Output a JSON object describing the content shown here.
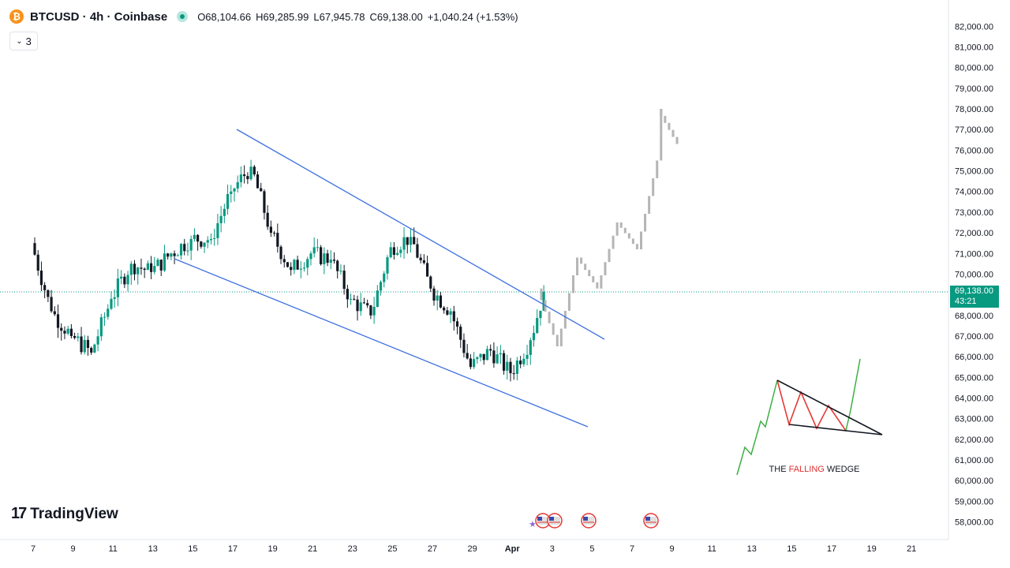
{
  "header": {
    "coin_glyph": "₿",
    "symbol_line": "BTCUSD · 4h · Coinbase",
    "open": "O68,104.66",
    "high": "H69,285.99",
    "low": "L67,945.78",
    "close": "C69,138.00",
    "change": "+1,040.24 (+1.53%)",
    "indicators_count": "3",
    "up_color": "#089981"
  },
  "price_tag": {
    "price": "69,138.00",
    "countdown": "43:21",
    "color": "#089981"
  },
  "watermark": {
    "logo": "17",
    "text": "TradingView"
  },
  "annotation": {
    "prefix": "THE ",
    "highlight": "FALLING",
    "suffix": " WEDGE",
    "highlight_color": "#e03030"
  },
  "chart_data": {
    "type": "candlestick",
    "price_axis_ticks": [
      "82,000.00",
      "81,000.00",
      "80,000.00",
      "79,000.00",
      "78,000.00",
      "77,000.00",
      "76,000.00",
      "75,000.00",
      "74,000.00",
      "73,000.00",
      "72,000.00",
      "71,000.00",
      "70,000.00",
      "68,000.00",
      "67,000.00",
      "66,000.00",
      "65,000.00",
      "64,000.00",
      "63,000.00",
      "62,000.00",
      "61,000.00",
      "60,000.00",
      "59,000.00",
      "58,000.00"
    ],
    "time_axis_ticks": [
      "7",
      "9",
      "11",
      "13",
      "15",
      "17",
      "19",
      "21",
      "23",
      "25",
      "27",
      "29",
      "Apr",
      "3",
      "5",
      "7",
      "9",
      "11",
      "13",
      "15",
      "17",
      "19",
      "21"
    ],
    "y_range": [
      57600,
      82300
    ],
    "x_range_days": [
      "Mar 6",
      "Apr 22"
    ],
    "current_price": 69138,
    "ohlc_daily": [
      {
        "day": "Mar 7",
        "open": 71500,
        "close": 68200
      },
      {
        "day": "Mar 8",
        "open": 68200,
        "close": 67000
      },
      {
        "day": "Mar 9",
        "open": 67000,
        "close": 66200
      },
      {
        "day": "Mar 10",
        "open": 66200,
        "close": 68800
      },
      {
        "day": "Mar 11",
        "open": 68800,
        "close": 70500
      },
      {
        "day": "Mar 12",
        "open": 70500,
        "close": 70100
      },
      {
        "day": "Mar 13",
        "open": 70100,
        "close": 71000
      },
      {
        "day": "Mar 14",
        "open": 71000,
        "close": 71700
      },
      {
        "day": "Mar 15",
        "open": 71700,
        "close": 71700
      },
      {
        "day": "Mar 16",
        "open": 71700,
        "close": 74000
      },
      {
        "day": "Mar 17",
        "open": 74000,
        "close": 75200
      },
      {
        "day": "Mar 18",
        "open": 75200,
        "close": 72000
      },
      {
        "day": "Mar 19",
        "open": 72000,
        "close": 70200
      },
      {
        "day": "Mar 20",
        "open": 70200,
        "close": 71000
      },
      {
        "day": "Mar 21",
        "open": 71000,
        "close": 70700
      },
      {
        "day": "Mar 22",
        "open": 70700,
        "close": 68800
      },
      {
        "day": "Mar 23",
        "open": 68800,
        "close": 68000
      },
      {
        "day": "Mar 24",
        "open": 68000,
        "close": 71300
      },
      {
        "day": "Mar 25",
        "open": 71300,
        "close": 71800
      },
      {
        "day": "Mar 26",
        "open": 71800,
        "close": 69300
      },
      {
        "day": "Mar 27",
        "open": 69300,
        "close": 68200
      },
      {
        "day": "Mar 28",
        "open": 68200,
        "close": 65500
      },
      {
        "day": "Mar 29",
        "open": 65500,
        "close": 66300
      },
      {
        "day": "Mar 30",
        "open": 66300,
        "close": 65200
      },
      {
        "day": "Mar 31",
        "open": 65200,
        "close": 66800
      },
      {
        "day": "Apr 1",
        "open": 66800,
        "close": 69138
      }
    ],
    "projection_path": [
      {
        "day": "Apr 1",
        "price": 69300
      },
      {
        "day": "Apr 2",
        "price": 66500
      },
      {
        "day": "Apr 3",
        "price": 70800
      },
      {
        "day": "Apr 4",
        "price": 69300
      },
      {
        "day": "Apr 5",
        "price": 72500
      },
      {
        "day": "Apr 6",
        "price": 71200
      },
      {
        "day": "Apr 7",
        "price": 75500
      },
      {
        "day": "Apr 7",
        "price": 78000
      },
      {
        "day": "Apr 8",
        "price": 76300
      }
    ],
    "annotations": [
      {
        "kind": "line",
        "label": "wedge-upper",
        "from": {
          "day": "Mar 17",
          "price": 77000
        },
        "to": {
          "day": "Apr 4",
          "price": 67200
        }
      },
      {
        "kind": "line",
        "label": "wedge-lower",
        "from": {
          "day": "Mar 14",
          "price": 70800
        },
        "to": {
          "day": "Apr 3.7",
          "price": 62400
        }
      }
    ],
    "colors": {
      "up": "#089981",
      "down": "#131722",
      "projection": "#b5b5b5",
      "trendline": "#2962ff"
    }
  }
}
